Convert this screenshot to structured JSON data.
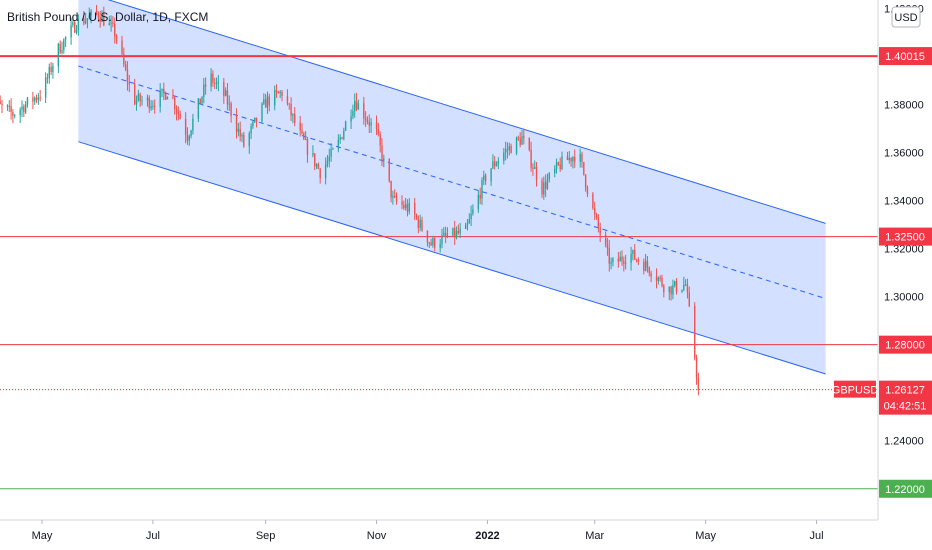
{
  "header": {
    "title": "British Pound / U.S. Dollar, 1D, FXCM",
    "currency": "USD"
  },
  "chart_data": {
    "type": "candlestick",
    "symbol": "GBPUSD",
    "y_ticks": [
      "1.24000",
      "1.26000",
      "1.28000",
      "1.30000",
      "1.32000",
      "1.34000",
      "1.36000",
      "1.38000",
      "1.42000"
    ],
    "x_ticks": [
      "May",
      "Jul",
      "Sep",
      "Nov",
      "2022",
      "Mar",
      "May",
      "Jul"
    ],
    "ylim": [
      1.207,
      1.4235
    ],
    "grid": false,
    "horizontal_levels": [
      {
        "value": 1.40015,
        "label": "1.40015",
        "color": "#f23645"
      },
      {
        "value": 1.325,
        "label": "1.32500",
        "color": "#f23645"
      },
      {
        "value": 1.28,
        "label": "1.28000",
        "color": "#f23645"
      },
      {
        "value": 1.22,
        "label": "1.22000",
        "color": "#4caf50"
      }
    ],
    "channel": {
      "start": "2021-05-21",
      "end": "2022-07-06",
      "upper": [
        1.4275,
        1.3305
      ],
      "middle": [
        1.396,
        1.2992
      ],
      "lower": [
        1.3645,
        1.2678
      ],
      "color": "#2962ff",
      "fill": "rgba(41,98,255,0.2)"
    },
    "last_price": {
      "label": "GBPUSD",
      "value": "1.26127",
      "countdown": "04:42:51",
      "color": "#f23645"
    },
    "up_color": "#26a69a",
    "down_color": "#ef5350",
    "closes": [
      [
        "2021-04-01",
        1.382
      ],
      [
        "2021-04-15",
        1.376
      ],
      [
        "2021-05-01",
        1.385
      ],
      [
        "2021-05-10",
        1.403
      ],
      [
        "2021-05-20",
        1.414
      ],
      [
        "2021-06-01",
        1.418
      ],
      [
        "2021-06-10",
        1.41
      ],
      [
        "2021-06-20",
        1.382
      ],
      [
        "2021-07-01",
        1.381
      ],
      [
        "2021-07-10",
        1.386
      ],
      [
        "2021-07-20",
        1.367
      ],
      [
        "2021-08-01",
        1.392
      ],
      [
        "2021-08-10",
        1.383
      ],
      [
        "2021-08-20",
        1.363
      ],
      [
        "2021-09-01",
        1.381
      ],
      [
        "2021-09-10",
        1.385
      ],
      [
        "2021-09-20",
        1.367
      ],
      [
        "2021-10-01",
        1.352
      ],
      [
        "2021-10-10",
        1.362
      ],
      [
        "2021-10-20",
        1.382
      ],
      [
        "2021-11-01",
        1.368
      ],
      [
        "2021-11-10",
        1.34
      ],
      [
        "2021-11-20",
        1.336
      ],
      [
        "2021-12-01",
        1.322
      ],
      [
        "2021-12-10",
        1.325
      ],
      [
        "2021-12-20",
        1.327
      ],
      [
        "2022-01-01",
        1.352
      ],
      [
        "2022-01-10",
        1.36
      ],
      [
        "2022-01-20",
        1.366
      ],
      [
        "2022-01-31",
        1.345
      ],
      [
        "2022-02-10",
        1.355
      ],
      [
        "2022-02-20",
        1.36
      ],
      [
        "2022-03-01",
        1.333
      ],
      [
        "2022-03-10",
        1.313
      ],
      [
        "2022-03-20",
        1.318
      ],
      [
        "2022-03-31",
        1.312
      ],
      [
        "2022-04-10",
        1.303
      ],
      [
        "2022-04-20",
        1.305
      ],
      [
        "2022-04-24",
        1.282
      ],
      [
        "2022-04-27",
        1.26127
      ]
    ]
  }
}
